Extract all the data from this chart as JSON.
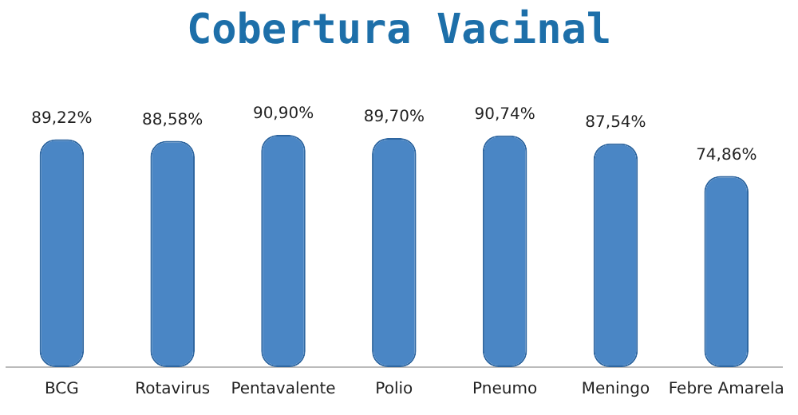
{
  "chart_data": {
    "type": "bar",
    "title": "Cobertura Vacinal",
    "categories": [
      "BCG",
      "Rotavirus",
      "Pentavalente",
      "Polio",
      "Pneumo",
      "Meningo",
      "Febre Amarela"
    ],
    "values": [
      89.22,
      88.58,
      90.9,
      89.7,
      90.74,
      87.54,
      74.86
    ],
    "value_labels": [
      "89,22%",
      "88,58%",
      "90,90%",
      "89,70%",
      "90,74%",
      "87,54%",
      "74,86%"
    ],
    "color": "#4a86c5",
    "grid": false,
    "legend": false
  }
}
